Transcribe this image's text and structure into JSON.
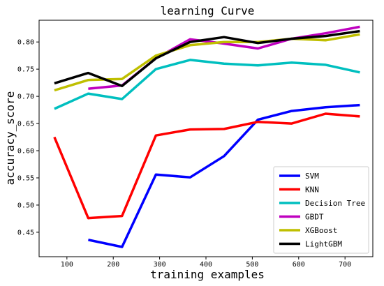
{
  "chart_data": {
    "type": "line",
    "title": "learning Curve",
    "xlabel": "training examples",
    "ylabel": "accuracy_score",
    "xlim": [
      40,
      760
    ],
    "ylim": [
      0.405,
      0.84
    ],
    "xticks": [
      100,
      200,
      300,
      400,
      500,
      600,
      700
    ],
    "yticks": [
      0.45,
      0.5,
      0.55,
      0.6,
      0.65,
      0.7,
      0.75,
      0.8
    ],
    "grid": false,
    "legend_position": "lower-right",
    "series": [
      {
        "name": "SVM",
        "color": "#0000ff",
        "x": [
          146,
          219,
          292,
          366,
          439,
          512,
          585,
          658,
          732
        ],
        "y": [
          0.436,
          0.423,
          0.556,
          0.551,
          0.59,
          0.657,
          0.673,
          0.68,
          0.684
        ]
      },
      {
        "name": "KNN",
        "color": "#ff0000",
        "x": [
          73,
          146,
          219,
          292,
          366,
          439,
          512,
          585,
          658,
          732
        ],
        "y": [
          0.625,
          0.476,
          0.48,
          0.628,
          0.639,
          0.64,
          0.653,
          0.65,
          0.668,
          0.663
        ]
      },
      {
        "name": "Decision Tree",
        "color": "#00bfbf",
        "x": [
          73,
          146,
          219,
          292,
          366,
          439,
          512,
          585,
          658,
          732
        ],
        "y": [
          0.677,
          0.705,
          0.695,
          0.75,
          0.767,
          0.76,
          0.757,
          0.762,
          0.758,
          0.744
        ]
      },
      {
        "name": "GBDT",
        "color": "#bf00bf",
        "x": [
          146,
          219,
          292,
          366,
          439,
          512,
          585,
          658,
          732
        ],
        "y": [
          0.714,
          0.72,
          0.77,
          0.805,
          0.797,
          0.788,
          0.806,
          0.816,
          0.828
        ]
      },
      {
        "name": "XGBoost",
        "color": "#bfbf00",
        "x": [
          73,
          146,
          219,
          292,
          366,
          439,
          512,
          585,
          658,
          732
        ],
        "y": [
          0.711,
          0.73,
          0.732,
          0.775,
          0.794,
          0.8,
          0.8,
          0.806,
          0.803,
          0.814
        ]
      },
      {
        "name": "LightGBM",
        "color": "#000000",
        "x": [
          73,
          146,
          219,
          292,
          366,
          439,
          512,
          585,
          658,
          732
        ],
        "y": [
          0.724,
          0.743,
          0.719,
          0.77,
          0.8,
          0.809,
          0.798,
          0.806,
          0.811,
          0.82
        ]
      }
    ]
  }
}
